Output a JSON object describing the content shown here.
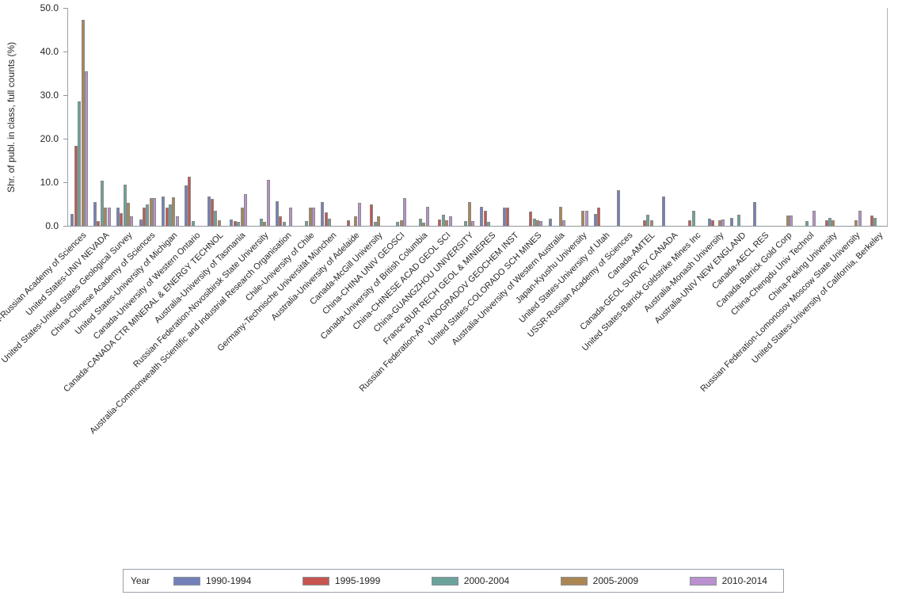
{
  "chart_data": {
    "type": "bar",
    "title": "",
    "xlabel": "",
    "ylabel": "Shr. of publ. in class, full counts (%)",
    "ylim": [
      0,
      50
    ],
    "yticks": [
      0,
      10,
      20,
      30,
      40,
      50
    ],
    "ytick_labels": [
      "0.0",
      "10.0",
      "20.0",
      "30.0",
      "40.0",
      "50.0"
    ],
    "grid": false,
    "legend_title": "Year",
    "legend_position": "bottom",
    "categories": [
      "Russian Federation-Russian Academy of Sciences",
      "United States-UNIV NEVADA",
      "United States-United States Geological Survey",
      "China-Chinese Academy of Sciences",
      "United States-University of Michigan",
      "Canada-University of Western Ontario",
      "Canada-CANADA CTR MINERAL & ENERGY TECHNOL",
      "Australia-University of Tasmania",
      "Russian Federation-Novosibirsk State University",
      "Australia-Commonwealth Scientific and Industrial Research Organisation",
      "Chile-University of Chile",
      "Germany-Technische Universität München",
      "Australia-University of Adelaide",
      "Canada-McGill University",
      "China-CHINA UNIV GEOSCI",
      "Canada-University of British Columbia",
      "China-CHINESE ACAD GEOL SCI",
      "China-GUANGZHOU UNIVERSITY",
      "France-BUR RECH GEOL & MINIERES",
      "Russian Federation-AP VINOGRADOV GEOCHEM INST",
      "United States-COLORADO SCH MINES",
      "Australia-University of Western Australia",
      "Japan-Kyushu University",
      "United States-University of Utah",
      "USSR-Russian Academy of Sciences",
      "Canada-AMTEL",
      "Canada-GEOL SURVEY CANADA",
      "United States-Barrick Goldstrike Mines Inc",
      "Australia-Monash University",
      "Australia-UNIV NEW ENGLAND",
      "Canada-AECL RES",
      "Canada-Barrick Gold Corp",
      "China-Chengdu Univ Technol",
      "China-Peking University",
      "Russian Federation-Lomonosov Moscow State University",
      "United States-University of California, Berkeley"
    ],
    "series": [
      {
        "name": "1990-1994",
        "color": "#7380b9",
        "values": [
          2.7,
          5.5,
          4.1,
          1.5,
          6.8,
          9.3,
          6.8,
          1.5,
          0,
          5.6,
          0,
          5.5,
          0,
          0,
          0,
          0,
          0,
          0,
          4.3,
          4.2,
          0,
          1.6,
          0,
          2.7,
          8.2,
          0,
          6.8,
          0,
          1.6,
          1.8,
          5.5,
          0,
          0,
          0,
          0,
          0
        ]
      },
      {
        "name": "1995-1999",
        "color": "#c75450",
        "values": [
          18.4,
          1.1,
          3.0,
          4.2,
          4.2,
          11.2,
          6.2,
          1.1,
          0,
          2.2,
          0,
          3.1,
          1.2,
          5.0,
          0,
          0,
          1.4,
          0,
          3.4,
          4.2,
          3.2,
          0,
          0,
          4.2,
          0,
          1.2,
          0,
          1.3,
          1.2,
          0,
          0,
          0,
          0,
          1.3,
          0,
          2.3
        ]
      },
      {
        "name": "2000-2004",
        "color": "#6ba39a",
        "values": [
          28.5,
          10.4,
          9.5,
          4.9,
          5.0,
          1.1,
          3.4,
          0.9,
          1.6,
          1.0,
          1.1,
          1.6,
          0,
          0.9,
          1.0,
          1.7,
          2.5,
          1.1,
          1.0,
          0,
          1.7,
          0,
          0,
          0,
          0,
          2.5,
          0,
          3.5,
          0,
          2.6,
          0,
          0,
          1.1,
          1.8,
          0,
          1.8
        ]
      },
      {
        "name": "2005-2009",
        "color": "#ab8653",
        "values": [
          47.2,
          4.1,
          5.3,
          6.3,
          6.5,
          0,
          1.2,
          4.2,
          0.9,
          0,
          4.2,
          0,
          2.2,
          2.1,
          1.3,
          0.7,
          1.2,
          5.4,
          0,
          0,
          1.2,
          4.3,
          3.5,
          0,
          0,
          1.2,
          0,
          0,
          1.3,
          0,
          0,
          2.3,
          0,
          1.3,
          1.3,
          0
        ]
      },
      {
        "name": "2010-2014",
        "color": "#ba90ce",
        "values": [
          35.4,
          4.1,
          2.2,
          6.3,
          2.2,
          0,
          0,
          7.3,
          10.5,
          4.2,
          4.2,
          0,
          5.2,
          0,
          6.4,
          4.3,
          2.2,
          1.1,
          0,
          0,
          1.1,
          1.2,
          3.5,
          0,
          0,
          0,
          0,
          0,
          1.4,
          0,
          0,
          2.3,
          3.5,
          0,
          3.5,
          0
        ]
      }
    ]
  }
}
